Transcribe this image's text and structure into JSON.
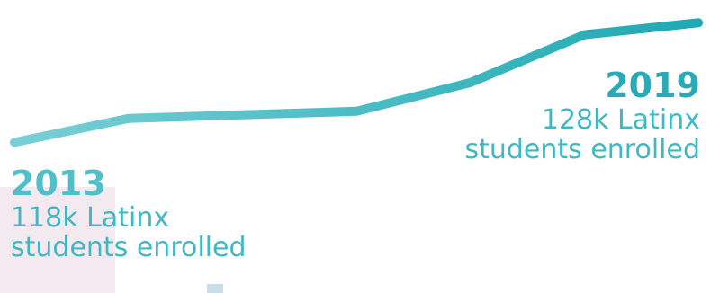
{
  "colors": {
    "line_start": "#79cfd6",
    "line_end": "#1fa9b2",
    "text": "#3fb8c3"
  },
  "chart_data": {
    "type": "line",
    "title": "",
    "xlabel": "",
    "ylabel": "",
    "x": [
      2013,
      2014,
      2015,
      2016,
      2017,
      2018,
      2019
    ],
    "series": [
      {
        "values": [
          118,
          120,
          120.3,
          120.6,
          123,
          127,
          128
        ]
      }
    ],
    "xlim": [
      2013,
      2019
    ],
    "ylim": [
      113,
      129
    ],
    "grid": false,
    "annotations": [
      {
        "x": 2013,
        "year": "2013",
        "text": "118k Latinx students enrolled",
        "line1": "118k Latinx",
        "line2": "students enrolled"
      },
      {
        "x": 2019,
        "year": "2019",
        "text": "128k Latinx students enrolled",
        "line1": "128k Latinx",
        "line2": "students enrolled"
      }
    ]
  }
}
